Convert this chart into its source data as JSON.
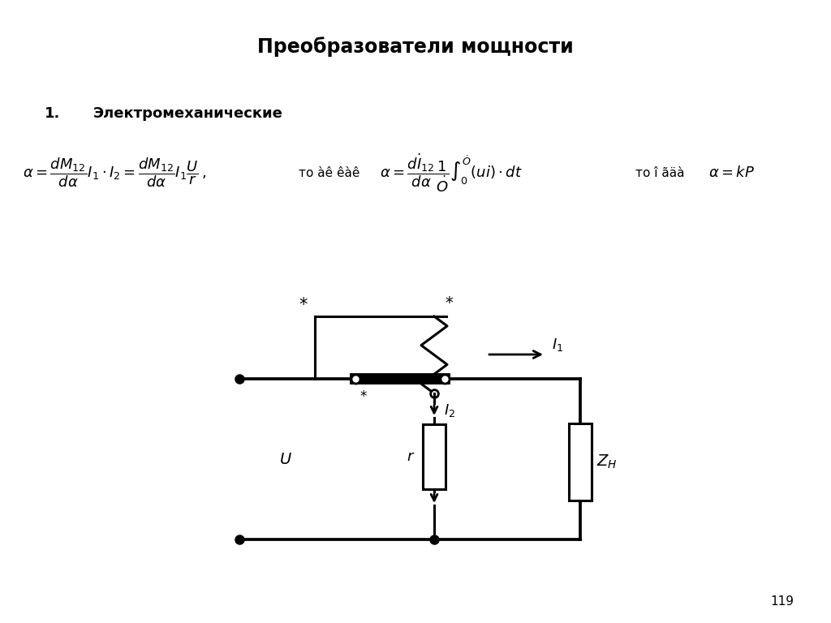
{
  "title": "Преобразователи мощности",
  "section_num": "1.",
  "section_name": "Электромеханические",
  "page_number": "119",
  "bg_color": "#ffffff",
  "line_color": "#000000",
  "connector1": "то àê êàê",
  "connector2": "то î ãäà"
}
